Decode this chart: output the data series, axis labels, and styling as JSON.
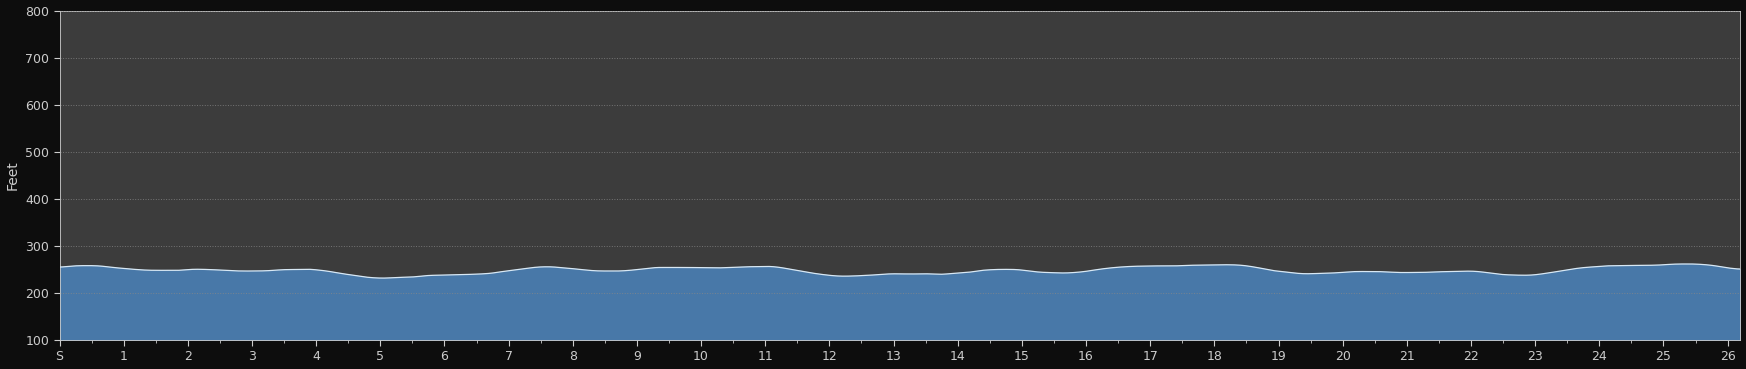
{
  "ylabel": "Feet",
  "ylim": [
    100,
    800
  ],
  "xlim": [
    0,
    26.2
  ],
  "yticks": [
    100,
    200,
    300,
    400,
    500,
    600,
    700,
    800
  ],
  "xtick_labels": [
    "S",
    "1",
    "2",
    "3",
    "4",
    "5",
    "6",
    "7",
    "8",
    "9",
    "10",
    "11",
    "12",
    "13",
    "14",
    "15",
    "16",
    "17",
    "18",
    "19",
    "20",
    "21",
    "22",
    "23",
    "24",
    "25",
    "26"
  ],
  "xtick_positions": [
    0,
    1,
    2,
    3,
    4,
    5,
    6,
    7,
    8,
    9,
    10,
    11,
    12,
    13,
    14,
    15,
    16,
    17,
    18,
    19,
    20,
    21,
    22,
    23,
    24,
    25,
    26
  ],
  "outer_bg_color": "#0d0d0d",
  "plot_bg_color": "#3c3c3c",
  "fill_color": "#4878a8",
  "line_color": "#d8e8f4",
  "grid_color": "#888888",
  "tick_color": "#cccccc",
  "label_color": "#cccccc",
  "base_elevation": 100,
  "elevation_mean": 245,
  "elevation_variation": 15,
  "figsize": [
    17.46,
    3.69
  ],
  "dpi": 100
}
